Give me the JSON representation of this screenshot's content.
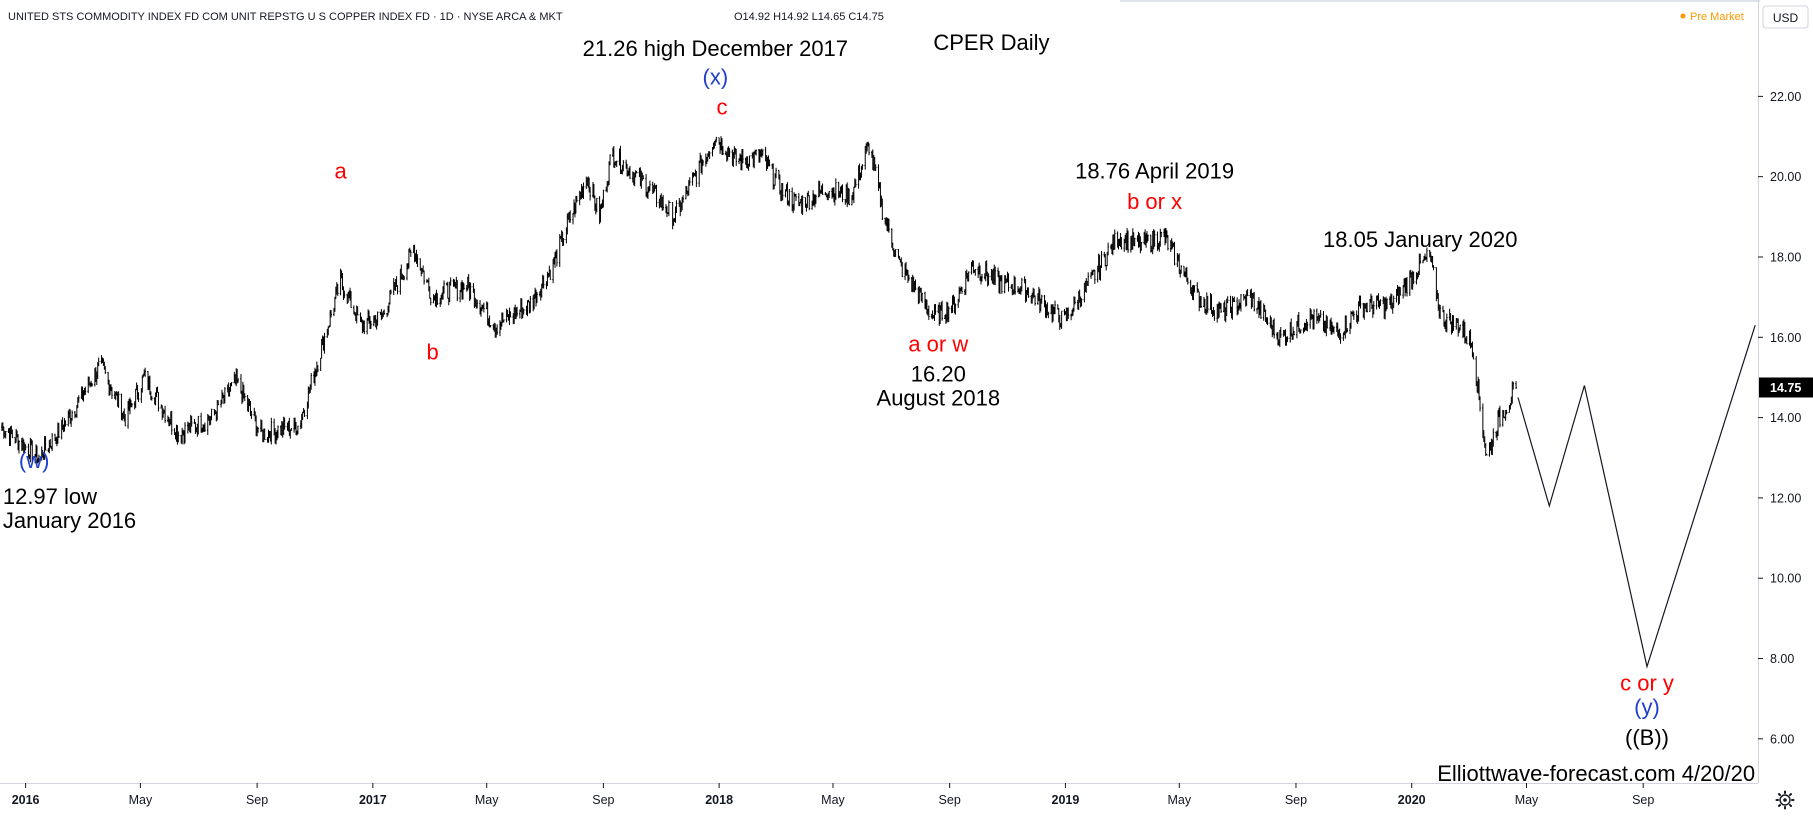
{
  "header": {
    "title": "UNITED STS COMMODITY INDEX FD COM UNIT REPSTG U S COPPER INDEX FD · 1D · NYSE ARCA & MKT",
    "ohlc": "O14.92  H14.92  L14.65  C14.75",
    "pre_market": "Pre Market",
    "currency": "USD"
  },
  "chart_data": {
    "type": "bar",
    "title": "CPER Daily",
    "xlabel": "",
    "ylabel": "",
    "x_axis_type": "date",
    "ylim": [
      4.9,
      24.4
    ],
    "xlim": [
      "2015-12-05",
      "2020-12-31"
    ],
    "price_scale_side": "right",
    "grid": false,
    "x_ticks": [
      {
        "label": "2016",
        "date": "2016-01-01",
        "bold": true
      },
      {
        "label": "May",
        "date": "2016-05-01",
        "bold": false
      },
      {
        "label": "Sep",
        "date": "2016-09-01",
        "bold": false
      },
      {
        "label": "2017",
        "date": "2017-01-01",
        "bold": true
      },
      {
        "label": "May",
        "date": "2017-05-01",
        "bold": false
      },
      {
        "label": "Sep",
        "date": "2017-09-01",
        "bold": false
      },
      {
        "label": "2018",
        "date": "2018-01-01",
        "bold": true
      },
      {
        "label": "May",
        "date": "2018-05-01",
        "bold": false
      },
      {
        "label": "Sep",
        "date": "2018-09-01",
        "bold": false
      },
      {
        "label": "2019",
        "date": "2019-01-01",
        "bold": true
      },
      {
        "label": "May",
        "date": "2019-05-01",
        "bold": false
      },
      {
        "label": "Sep",
        "date": "2019-09-01",
        "bold": false
      },
      {
        "label": "2020",
        "date": "2020-01-01",
        "bold": true
      },
      {
        "label": "May",
        "date": "2020-05-01",
        "bold": false
      },
      {
        "label": "Sep",
        "date": "2020-09-01",
        "bold": false
      }
    ],
    "y_ticks": [
      "6.00",
      "8.00",
      "10.00",
      "12.00",
      "14.00",
      "16.00",
      "18.00",
      "20.00",
      "22.00"
    ],
    "last_price": {
      "label": "14.75",
      "value": 14.75,
      "color": "#000000"
    },
    "series": [
      {
        "type": "ohlc-daily",
        "color": "#000000",
        "anchors": [
          {
            "date": "2015-12-05",
            "close": 13.8
          },
          {
            "date": "2016-01-15",
            "close": 13.0
          },
          {
            "date": "2016-02-10",
            "close": 13.8
          },
          {
            "date": "2016-03-20",
            "close": 15.3
          },
          {
            "date": "2016-04-15",
            "close": 14.0
          },
          {
            "date": "2016-05-05",
            "close": 15.0
          },
          {
            "date": "2016-06-10",
            "close": 13.6
          },
          {
            "date": "2016-07-15",
            "close": 14.0
          },
          {
            "date": "2016-08-10",
            "close": 14.9
          },
          {
            "date": "2016-09-05",
            "close": 13.6
          },
          {
            "date": "2016-10-15",
            "close": 13.8
          },
          {
            "date": "2016-11-05",
            "close": 15.5
          },
          {
            "date": "2016-11-28",
            "close": 17.4
          },
          {
            "date": "2016-12-20",
            "close": 16.3
          },
          {
            "date": "2017-01-10",
            "close": 16.5
          },
          {
            "date": "2017-02-13",
            "close": 18.2
          },
          {
            "date": "2017-03-05",
            "close": 17.0
          },
          {
            "date": "2017-04-10",
            "close": 17.3
          },
          {
            "date": "2017-05-10",
            "close": 16.3
          },
          {
            "date": "2017-06-15",
            "close": 16.8
          },
          {
            "date": "2017-07-10",
            "close": 17.8
          },
          {
            "date": "2017-07-25",
            "close": 18.8
          },
          {
            "date": "2017-08-15",
            "close": 20.0
          },
          {
            "date": "2017-08-28",
            "close": 19.0
          },
          {
            "date": "2017-09-10",
            "close": 20.6
          },
          {
            "date": "2017-10-15",
            "close": 19.8
          },
          {
            "date": "2017-11-15",
            "close": 19.0
          },
          {
            "date": "2017-12-28",
            "close": 21.0
          },
          {
            "date": "2018-01-20",
            "close": 20.4
          },
          {
            "date": "2018-02-15",
            "close": 20.5
          },
          {
            "date": "2018-03-10",
            "close": 19.6
          },
          {
            "date": "2018-03-25",
            "close": 19.3
          },
          {
            "date": "2018-04-25",
            "close": 19.7
          },
          {
            "date": "2018-05-20",
            "close": 19.5
          },
          {
            "date": "2018-06-08",
            "close": 20.8
          },
          {
            "date": "2018-06-22",
            "close": 19.2
          },
          {
            "date": "2018-07-10",
            "close": 17.8
          },
          {
            "date": "2018-08-15",
            "close": 16.5
          },
          {
            "date": "2018-09-05",
            "close": 16.8
          },
          {
            "date": "2018-09-25",
            "close": 17.8
          },
          {
            "date": "2018-10-20",
            "close": 17.4
          },
          {
            "date": "2018-11-20",
            "close": 17.2
          },
          {
            "date": "2018-12-30",
            "close": 16.4
          },
          {
            "date": "2019-01-25",
            "close": 17.3
          },
          {
            "date": "2019-02-25",
            "close": 18.5
          },
          {
            "date": "2019-03-20",
            "close": 18.3
          },
          {
            "date": "2019-04-15",
            "close": 18.5
          },
          {
            "date": "2019-05-20",
            "close": 17.0
          },
          {
            "date": "2019-06-15",
            "close": 16.6
          },
          {
            "date": "2019-07-15",
            "close": 17.0
          },
          {
            "date": "2019-08-15",
            "close": 16.0
          },
          {
            "date": "2019-09-15",
            "close": 16.5
          },
          {
            "date": "2019-10-15",
            "close": 16.1
          },
          {
            "date": "2019-11-10",
            "close": 16.8
          },
          {
            "date": "2019-12-10",
            "close": 16.8
          },
          {
            "date": "2020-01-10",
            "close": 17.8
          },
          {
            "date": "2020-01-20",
            "close": 18.0
          },
          {
            "date": "2020-02-01",
            "close": 16.5
          },
          {
            "date": "2020-02-20",
            "close": 16.3
          },
          {
            "date": "2020-03-05",
            "close": 15.8
          },
          {
            "date": "2020-03-20",
            "close": 13.0
          },
          {
            "date": "2020-04-01",
            "close": 13.9
          },
          {
            "date": "2020-04-20",
            "close": 14.75
          }
        ]
      },
      {
        "type": "projection",
        "color": "#131722",
        "points": [
          {
            "date": "2020-04-22",
            "value": 14.5
          },
          {
            "date": "2020-05-25",
            "value": 11.8
          },
          {
            "date": "2020-07-01",
            "value": 14.8
          },
          {
            "date": "2020-09-05",
            "value": 7.8
          },
          {
            "date": "2020-12-28",
            "value": 16.3
          }
        ]
      }
    ],
    "annotations": [
      {
        "lines": [
          "21.26 high December 2017"
        ],
        "color": "#000000",
        "date": "2017-12-28",
        "value": 23.0,
        "anchor": "middle"
      },
      {
        "lines": [
          "CPER Daily"
        ],
        "color": "#000000",
        "date": "2018-10-15",
        "value": 23.15,
        "anchor": "middle",
        "role": "title"
      },
      {
        "lines": [
          "(x)"
        ],
        "color": "#1f3fd0",
        "date": "2017-12-28",
        "value": 22.3,
        "anchor": "middle"
      },
      {
        "lines": [
          "c"
        ],
        "color": "#ff0000",
        "date": "2018-01-04",
        "value": 21.55,
        "anchor": "middle"
      },
      {
        "lines": [
          "a"
        ],
        "color": "#ff0000",
        "date": "2016-11-28",
        "value": 19.95,
        "anchor": "middle"
      },
      {
        "lines": [
          "b"
        ],
        "color": "#ff0000",
        "date": "2017-03-05",
        "value": 15.45,
        "anchor": "middle"
      },
      {
        "lines": [
          "(w)"
        ],
        "color": "#1f3fd0",
        "date": "2016-01-10",
        "value": 12.75,
        "anchor": "middle"
      },
      {
        "lines": [
          "12.97 low",
          "January 2016"
        ],
        "color": "#000000",
        "date": "2015-12-08",
        "value": 11.85,
        "anchor": "start"
      },
      {
        "lines": [
          "a or w"
        ],
        "color": "#ff0000",
        "date": "2018-08-20",
        "value": 15.65,
        "anchor": "middle"
      },
      {
        "lines": [
          "16.20",
          "August 2018"
        ],
        "color": "#000000",
        "date": "2018-08-20",
        "value": 14.9,
        "anchor": "middle"
      },
      {
        "lines": [
          "18.76 April 2019"
        ],
        "color": "#000000",
        "date": "2019-04-05",
        "value": 19.95,
        "anchor": "middle"
      },
      {
        "lines": [
          "b or x"
        ],
        "color": "#ff0000",
        "date": "2019-04-05",
        "value": 19.2,
        "anchor": "middle"
      },
      {
        "lines": [
          "18.05 January 2020"
        ],
        "color": "#000000",
        "date": "2020-01-10",
        "value": 18.25,
        "anchor": "middle"
      },
      {
        "lines": [
          "c or y"
        ],
        "color": "#ff0000",
        "date": "2020-09-05",
        "value": 7.2,
        "anchor": "middle"
      },
      {
        "lines": [
          "(y)"
        ],
        "color": "#1f3fd0",
        "date": "2020-09-05",
        "value": 6.6,
        "anchor": "middle"
      },
      {
        "lines": [
          "((B))"
        ],
        "color": "#000000",
        "date": "2020-09-05",
        "value": 5.85,
        "anchor": "middle"
      },
      {
        "lines": [
          "Elliottwave-forecast.com 4/20/20"
        ],
        "color": "#000000",
        "date": "2020-12-28",
        "value": 4.95,
        "anchor": "end"
      }
    ]
  }
}
